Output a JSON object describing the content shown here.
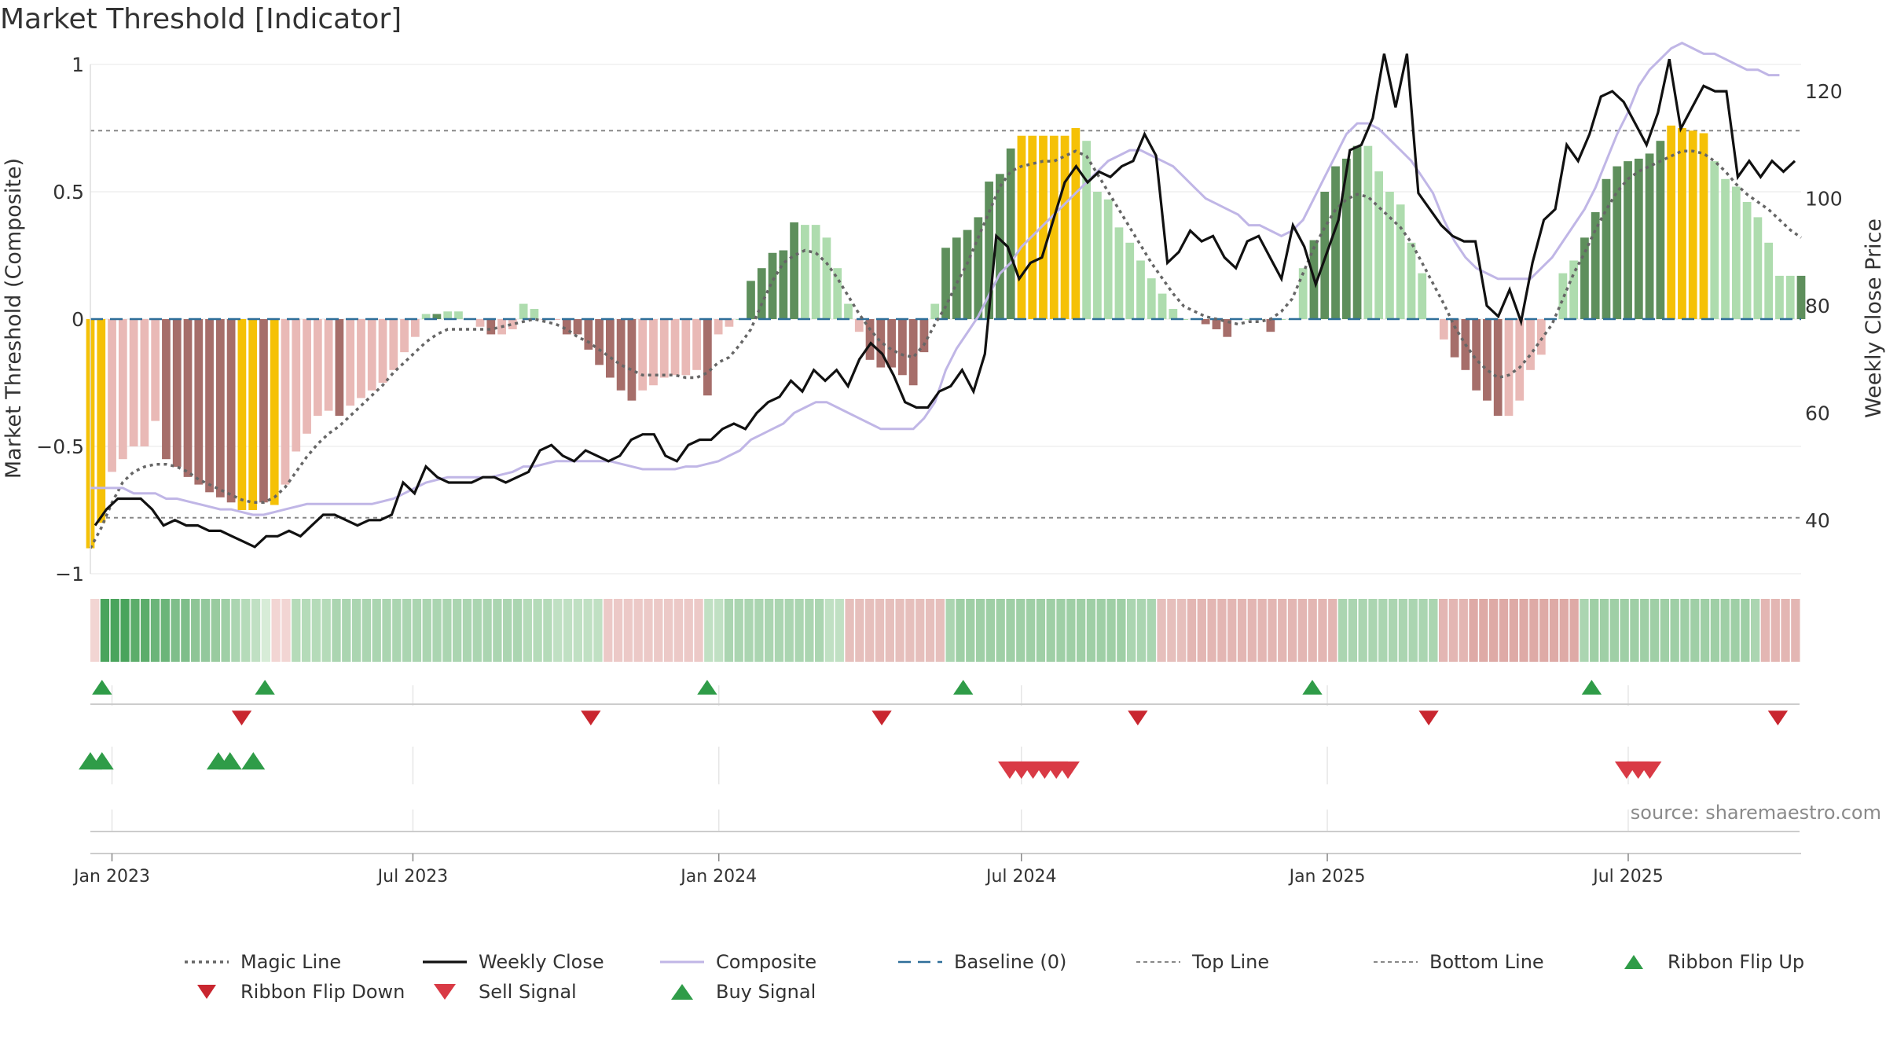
{
  "title": "Market Threshold [Indicator]",
  "source": "source: sharemaestro.com",
  "colors": {
    "gold": "#f5c106",
    "dark_green": "#5e8f5c",
    "light_green": "#aedcae",
    "dark_red": "#a66e6a",
    "light_red": "#e9b9b6",
    "close": "#111111",
    "composite": "#c0b6e6",
    "magic": "#666666",
    "baseline": "#2e6e99",
    "up": "#2f9c48",
    "down": "#d93a45"
  },
  "legend": [
    {
      "label": "Magic Line",
      "icon": "dotted-line-icon"
    },
    {
      "label": "Weekly Close",
      "icon": "solid-line-icon"
    },
    {
      "label": "Composite",
      "icon": "composite-line-icon"
    },
    {
      "label": "Baseline (0)",
      "icon": "dashed-line-icon"
    },
    {
      "label": "Top Line",
      "icon": "thin-dashed-line-icon"
    },
    {
      "label": "Bottom Line",
      "icon": "thin-dashed-line-icon"
    },
    {
      "label": "Ribbon Flip Up",
      "icon": "triangle-up-icon"
    },
    {
      "label": "Ribbon Flip Down",
      "icon": "triangle-down-icon"
    },
    {
      "label": "Sell Signal",
      "icon": "triangle-down-icon"
    },
    {
      "label": "Buy Signal",
      "icon": "triangle-up-icon"
    }
  ],
  "chart_data": {
    "type": "bar",
    "ylabel": "Market Threshold (Composite)",
    "y2label": "Weekly Close Price",
    "ylim": [
      -1,
      1
    ],
    "y2lim": [
      30,
      125
    ],
    "yticks": [
      "−1",
      "−0.5",
      "0",
      "0.5",
      "1"
    ],
    "y2ticks": [
      "40",
      "60",
      "80",
      "100",
      "120"
    ],
    "xticks": [
      "Jan 2023",
      "Jul 2023",
      "Jan 2024",
      "Jul 2024",
      "Jan 2025",
      "Jul 2025"
    ],
    "top_line": 0.74,
    "bottom_line": -0.78,
    "x_start": "2022-12-19",
    "x_end": "2025-10-13",
    "series": [
      {
        "name": "Composite",
        "kind": "bar",
        "values": [
          -0.9,
          -0.8,
          -0.6,
          -0.55,
          -0.5,
          -0.5,
          -0.4,
          -0.55,
          -0.58,
          -0.62,
          -0.65,
          -0.68,
          -0.7,
          -0.72,
          -0.75,
          -0.75,
          -0.72,
          -0.73,
          -0.65,
          -0.52,
          -0.45,
          -0.38,
          -0.36,
          -0.38,
          -0.34,
          -0.31,
          -0.28,
          -0.25,
          -0.2,
          -0.13,
          -0.07,
          0.02,
          0.02,
          0.03,
          0.03,
          0.0,
          -0.03,
          -0.06,
          -0.06,
          -0.04,
          0.06,
          0.04,
          0.0,
          0.0,
          -0.06,
          -0.06,
          -0.12,
          -0.18,
          -0.23,
          -0.28,
          -0.32,
          -0.28,
          -0.26,
          -0.23,
          -0.22,
          -0.22,
          -0.2,
          -0.3,
          -0.06,
          -0.03,
          0.0,
          0.15,
          0.2,
          0.26,
          0.27,
          0.38,
          0.37,
          0.37,
          0.32,
          0.2,
          0.06,
          -0.05,
          -0.16,
          -0.19,
          -0.19,
          -0.22,
          -0.26,
          -0.13,
          0.06,
          0.28,
          0.32,
          0.35,
          0.4,
          0.54,
          0.57,
          0.67,
          0.72,
          0.72,
          0.72,
          0.72,
          0.72,
          0.75,
          0.7,
          0.5,
          0.47,
          0.36,
          0.3,
          0.23,
          0.16,
          0.1,
          0.04,
          0.0,
          0.0,
          -0.02,
          -0.04,
          -0.07,
          0.0,
          0.0,
          0.0,
          -0.05,
          0.0,
          0.0,
          0.2,
          0.31,
          0.5,
          0.6,
          0.63,
          0.68,
          0.68,
          0.58,
          0.5,
          0.45,
          0.3,
          0.18,
          0.0,
          -0.08,
          -0.15,
          -0.2,
          -0.28,
          -0.32,
          -0.38,
          -0.38,
          -0.32,
          -0.2,
          -0.14,
          0.0,
          0.18,
          0.23,
          0.32,
          0.42,
          0.55,
          0.6,
          0.62,
          0.63,
          0.65,
          0.7,
          0.76,
          0.75,
          0.74,
          0.73,
          0.62,
          0.55,
          0.52,
          0.46,
          0.4,
          0.3,
          0.17,
          0.17,
          0.17
        ],
        "colors": [
          "gold",
          "gold",
          "lred",
          "lred",
          "lred",
          "lred",
          "lred",
          "dred",
          "dred",
          "dred",
          "dred",
          "dred",
          "dred",
          "dred",
          "gold",
          "gold",
          "dred",
          "gold",
          "lred",
          "lred",
          "lred",
          "lred",
          "lred",
          "dred",
          "lred",
          "lred",
          "lred",
          "lred",
          "lred",
          "lred",
          "lred",
          "lgreen",
          "dgreen",
          "lgreen",
          "lgreen",
          "lred",
          "lred",
          "dred",
          "lred",
          "lred",
          "lgreen",
          "lgreen",
          "lred",
          "lred",
          "dred",
          "dred",
          "dred",
          "dred",
          "dred",
          "dred",
          "dred",
          "lred",
          "lred",
          "lred",
          "lred",
          "lred",
          "lred",
          "dred",
          "lred",
          "lred",
          "lgreen",
          "dgreen",
          "dgreen",
          "dgreen",
          "dgreen",
          "dgreen",
          "lgreen",
          "lgreen",
          "lgreen",
          "lgreen",
          "lgreen",
          "lred",
          "dred",
          "dred",
          "dred",
          "dred",
          "dred",
          "dred",
          "lgreen",
          "dgreen",
          "dgreen",
          "dgreen",
          "dgreen",
          "dgreen",
          "dgreen",
          "dgreen",
          "gold",
          "gold",
          "gold",
          "gold",
          "gold",
          "gold",
          "lgreen",
          "lgreen",
          "lgreen",
          "lgreen",
          "lgreen",
          "lgreen",
          "lgreen",
          "lgreen",
          "lgreen",
          "lgreen",
          "lgreen",
          "dred",
          "dred",
          "dred",
          "lgreen",
          "lgreen",
          "lgreen",
          "dred",
          "lgreen",
          "lgreen",
          "lgreen",
          "dgreen",
          "dgreen",
          "dgreen",
          "dgreen",
          "dgreen",
          "lgreen",
          "lgreen",
          "lgreen",
          "lgreen",
          "lgreen",
          "lgreen",
          "lgreen",
          "lred",
          "dred",
          "dred",
          "dred",
          "dred",
          "dred",
          "lred",
          "lred",
          "lred",
          "lred",
          "lgreen",
          "lgreen",
          "lgreen",
          "dgreen",
          "dgreen",
          "dgreen",
          "dgreen",
          "dgreen",
          "dgreen",
          "dgreen",
          "dgreen",
          "gold",
          "gold",
          "gold",
          "gold",
          "lgreen",
          "lgreen",
          "lgreen",
          "lgreen",
          "lgreen",
          "lgreen",
          "lgreen",
          "lgreen",
          "dgreen"
        ]
      },
      {
        "name": "Magic Line",
        "kind": "line",
        "axis": "left",
        "values": [
          -0.9,
          -0.82,
          -0.72,
          -0.64,
          -0.6,
          -0.58,
          -0.57,
          -0.57,
          -0.58,
          -0.6,
          -0.63,
          -0.65,
          -0.67,
          -0.69,
          -0.71,
          -0.72,
          -0.72,
          -0.7,
          -0.66,
          -0.6,
          -0.54,
          -0.49,
          -0.45,
          -0.42,
          -0.38,
          -0.34,
          -0.3,
          -0.26,
          -0.21,
          -0.17,
          -0.13,
          -0.09,
          -0.06,
          -0.04,
          -0.04,
          -0.04,
          -0.04,
          -0.04,
          -0.03,
          -0.02,
          -0.01,
          0.0,
          -0.01,
          -0.02,
          -0.04,
          -0.07,
          -0.09,
          -0.12,
          -0.15,
          -0.18,
          -0.2,
          -0.22,
          -0.22,
          -0.22,
          -0.22,
          -0.23,
          -0.23,
          -0.21,
          -0.17,
          -0.15,
          -0.1,
          -0.04,
          0.06,
          0.15,
          0.22,
          0.25,
          0.27,
          0.26,
          0.22,
          0.16,
          0.09,
          0.02,
          -0.04,
          -0.09,
          -0.12,
          -0.14,
          -0.15,
          -0.1,
          -0.02,
          0.05,
          0.14,
          0.22,
          0.32,
          0.42,
          0.52,
          0.58,
          0.6,
          0.61,
          0.62,
          0.62,
          0.64,
          0.66,
          0.64,
          0.57,
          0.5,
          0.43,
          0.36,
          0.29,
          0.22,
          0.16,
          0.1,
          0.05,
          0.03,
          0.01,
          0.0,
          -0.01,
          -0.02,
          -0.01,
          -0.01,
          0.0,
          0.03,
          0.08,
          0.18,
          0.28,
          0.36,
          0.43,
          0.47,
          0.49,
          0.48,
          0.44,
          0.4,
          0.36,
          0.3,
          0.22,
          0.14,
          0.06,
          -0.03,
          -0.1,
          -0.16,
          -0.2,
          -0.23,
          -0.22,
          -0.19,
          -0.14,
          -0.08,
          -0.02,
          0.08,
          0.18,
          0.26,
          0.35,
          0.43,
          0.5,
          0.55,
          0.58,
          0.6,
          0.62,
          0.64,
          0.66,
          0.66,
          0.65,
          0.62,
          0.58,
          0.53,
          0.49,
          0.46,
          0.43,
          0.39,
          0.35,
          0.32
        ]
      },
      {
        "name": "Composite",
        "kind": "line",
        "axis": "right",
        "values": [
          46,
          46,
          46,
          46,
          45,
          45,
          45,
          44,
          44,
          43.5,
          43,
          42.5,
          42,
          42,
          41.5,
          41,
          41,
          41.5,
          42,
          42.5,
          43,
          43,
          43,
          43,
          43,
          43,
          43,
          43.5,
          44,
          45,
          46,
          47,
          47.5,
          48,
          48,
          48,
          48,
          48,
          48.5,
          49,
          50,
          50,
          50.5,
          51,
          51,
          51,
          51,
          51,
          51,
          50.5,
          50,
          49.5,
          49.5,
          49.5,
          49.5,
          50,
          50,
          50.5,
          51,
          52,
          53,
          55,
          56,
          57,
          58,
          60,
          61,
          62,
          62,
          61,
          60,
          59,
          58,
          57,
          57,
          57,
          57,
          59,
          62,
          68,
          72,
          75,
          78,
          82,
          86,
          88,
          91,
          93,
          95,
          97,
          99,
          101,
          103,
          105,
          107,
          108,
          109,
          109,
          108,
          107,
          106,
          104,
          102,
          100,
          99,
          98,
          97,
          95,
          95,
          94,
          93,
          94,
          96,
          100,
          104,
          108,
          112,
          114,
          114,
          113,
          111,
          109,
          107,
          104,
          101,
          96,
          92,
          89,
          87,
          86,
          85,
          85,
          85,
          85,
          87,
          89,
          92,
          95,
          98,
          102,
          107,
          112,
          116,
          121,
          124,
          126,
          128,
          129,
          128,
          127,
          127,
          126,
          125,
          124,
          124,
          123,
          123
        ]
      },
      {
        "name": "Weekly Close",
        "kind": "line",
        "axis": "right",
        "values": [
          39,
          42,
          44,
          44,
          44,
          42,
          39,
          40,
          39,
          39,
          38,
          38,
          37,
          36,
          35,
          37,
          37,
          38,
          37,
          39,
          41,
          41,
          40,
          39,
          40,
          40,
          41,
          47,
          45,
          50,
          48,
          47,
          47,
          47,
          48,
          48,
          47,
          48,
          49,
          53,
          54,
          52,
          51,
          53,
          52,
          51,
          52,
          55,
          56,
          56,
          52,
          51,
          54,
          55,
          55,
          57,
          58,
          57,
          60,
          62,
          63,
          66,
          64,
          68,
          66,
          68,
          65,
          70,
          73,
          71,
          67,
          62,
          61,
          61,
          64,
          65,
          68,
          64,
          71,
          93,
          91,
          85,
          88,
          89,
          96,
          103,
          106,
          103,
          105,
          104,
          106,
          107,
          112,
          108,
          88,
          90,
          94,
          92,
          93,
          89,
          87,
          92,
          93,
          89,
          85,
          95,
          91,
          84,
          90,
          96,
          109,
          110,
          115,
          127,
          117,
          127,
          101,
          98,
          95,
          93,
          92,
          92,
          80,
          78,
          83,
          77,
          88,
          96,
          98,
          110,
          107,
          112,
          119,
          120,
          118,
          114,
          110,
          116,
          126,
          113,
          117,
          121,
          120,
          120,
          104,
          107,
          104,
          107,
          105,
          107
        ],
        "x_offset_weeks": 0
      }
    ],
    "ribbon": {
      "colors": [
        "#f2d5d3",
        "#49a45c",
        "#49a45c",
        "#49a45c",
        "#5cad6b",
        "#5cad6b",
        "#6bb579",
        "#6bb579",
        "#7fbe8a",
        "#7fbe8a",
        "#8ec596",
        "#93c89c",
        "#99cb9f",
        "#9fcfa6",
        "#abd5b1",
        "#b5dbb9",
        "#c0e0c3",
        "#d7ecd7",
        "#f2d5d3",
        "#f2d5d3",
        "#b5dbb9",
        "#b5dbb9",
        "#b5dbb9",
        "#b5dbb9",
        "#abd5b1",
        "#abd5b1",
        "#abd5b1",
        "#abd5b1",
        "#abd5b1",
        "#abd5b1",
        "#abd5b1",
        "#abd5b1",
        "#abd5b1",
        "#abd5b1",
        "#abd5b1",
        "#abd5b1",
        "#abd5b1",
        "#abd5b1",
        "#abd5b1",
        "#abd5b1",
        "#abd5b1",
        "#abd5b1",
        "#abd5b1",
        "#b5dbb9",
        "#b5dbb9",
        "#b5dbb9",
        "#c0e0c3",
        "#c0e0c3",
        "#c0e0c3",
        "#c0e0c3",
        "#c0e0c3",
        "#ecc9c7",
        "#ecc9c7",
        "#ecc9c7",
        "#ecc9c7",
        "#ecc9c7",
        "#ecc9c7",
        "#ecc9c7",
        "#ecc9c7",
        "#ecc9c7",
        "#ecc9c7",
        "#c0e0c3",
        "#c0e0c3",
        "#abd5b1",
        "#abd5b1",
        "#abd5b1",
        "#abd5b1",
        "#abd5b1",
        "#abd5b1",
        "#abd5b1",
        "#abd5b1",
        "#abd5b1",
        "#abd5b1",
        "#c0e0c3",
        "#c0e0c3",
        "#e6bfbc",
        "#e6bfbc",
        "#e6bfbc",
        "#e6bfbc",
        "#e6bfbc",
        "#e6bfbc",
        "#e6bfbc",
        "#e6bfbc",
        "#e6bfbc",
        "#e6bfbc",
        "#abd5b1",
        "#9fcfa6",
        "#9fcfa6",
        "#9fcfa6",
        "#9fcfa6",
        "#9fcfa6",
        "#9fcfa6",
        "#9fcfa6",
        "#9fcfa6",
        "#9fcfa6",
        "#9fcfa6",
        "#9fcfa6",
        "#9fcfa6",
        "#9fcfa6",
        "#9fcfa6",
        "#9fcfa6",
        "#9fcfa6",
        "#9fcfa6",
        "#abd5b1",
        "#abd5b1",
        "#abd5b1",
        "#e6bfbc",
        "#e6bfbc",
        "#e6bfbc",
        "#e3b6b3",
        "#e3b6b3",
        "#e3b6b3",
        "#e3b6b3",
        "#e3b6b3",
        "#e3b6b3",
        "#e3b6b3",
        "#e3b6b3",
        "#e3b6b3",
        "#e3b6b3",
        "#e3b6b3",
        "#e3b6b3",
        "#e3b6b3",
        "#e3b6b3",
        "#e3b6b3",
        "#abd5b1",
        "#abd5b1",
        "#abd5b1",
        "#abd5b1",
        "#abd5b1",
        "#abd5b1",
        "#abd5b1",
        "#abd5b1",
        "#abd5b1",
        "#abd5b1",
        "#e3b6b3",
        "#e3b6b3",
        "#e3b6b3",
        "#deaaa6",
        "#deaaa6",
        "#deaaa6",
        "#deaaa6",
        "#deaaa6",
        "#deaaa6",
        "#deaaa6",
        "#deaaa6",
        "#deaaa6",
        "#deaaa6",
        "#deaaa6",
        "#abd5b1",
        "#9fcfa6",
        "#9fcfa6",
        "#9fcfa6",
        "#9fcfa6",
        "#9fcfa6",
        "#9fcfa6",
        "#9fcfa6",
        "#9fcfa6",
        "#9fcfa6",
        "#9fcfa6",
        "#9fcfa6",
        "#9fcfa6",
        "#9fcfa6",
        "#9fcfa6",
        "#9fcfa6",
        "#9fcfa6",
        "#abd5b1",
        "#e3b6b3",
        "#e3b6b3",
        "#e3b6b3",
        "#e3b6b3"
      ]
    },
    "ribbon_flip_up": [
      "2022-12-26",
      "2023-04-03",
      "2023-12-25",
      "2024-05-27",
      "2024-12-23",
      "2025-06-09"
    ],
    "ribbon_flip_down": [
      "2023-03-20",
      "2023-10-16",
      "2024-04-08",
      "2024-09-09",
      "2025-03-03",
      "2025-09-29"
    ],
    "buy_signal": [
      "2022-12-19",
      "2022-12-26",
      "2023-03-06",
      "2023-03-13",
      "2023-03-27"
    ],
    "sell_signal": [
      "2024-06-24",
      "2024-07-01",
      "2024-07-08",
      "2024-07-15",
      "2024-07-22",
      "2024-07-29",
      "2025-06-30",
      "2025-07-07",
      "2025-07-14"
    ]
  }
}
